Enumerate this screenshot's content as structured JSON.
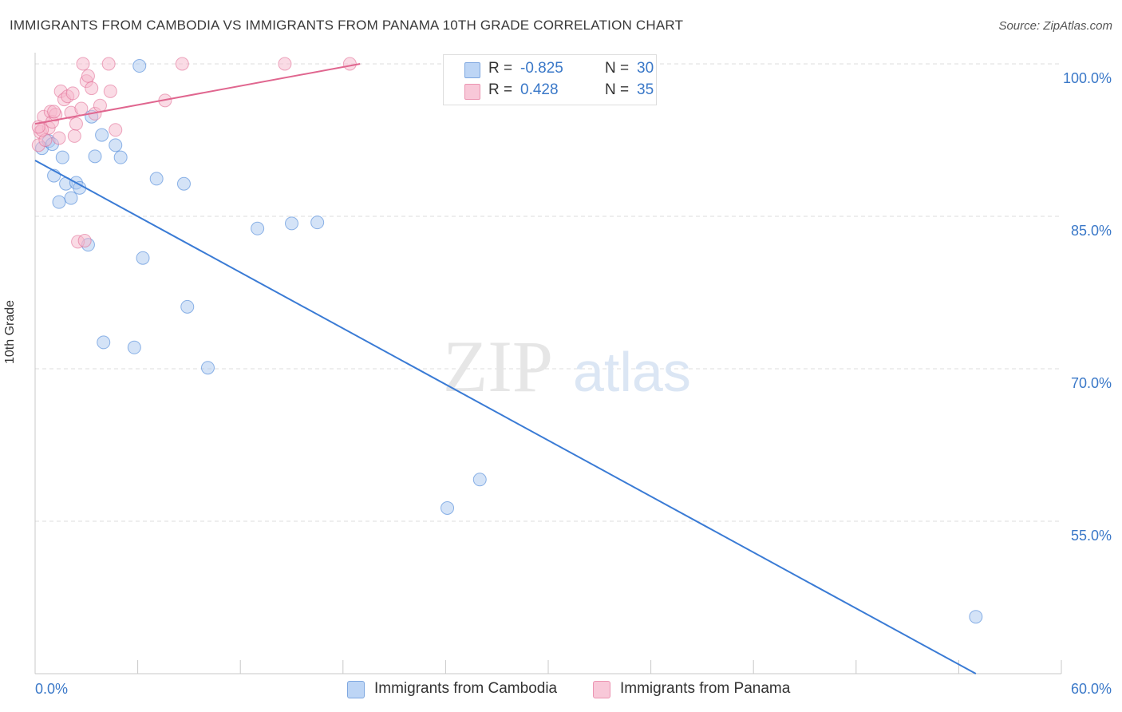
{
  "chart_data": {
    "type": "scatter",
    "title": "IMMIGRANTS FROM CAMBODIA VS IMMIGRANTS FROM PANAMA 10TH GRADE CORRELATION CHART",
    "source": "Source: ZipAtlas.com",
    "xlabel": "",
    "ylabel": "10th Grade",
    "xlim": [
      0,
      60
    ],
    "ylim": [
      40,
      100
    ],
    "x_tick_labels": [
      "0.0%",
      "60.0%"
    ],
    "y_ticks": [
      {
        "value": 100,
        "label": "100.0%"
      },
      {
        "value": 85,
        "label": "85.0%"
      },
      {
        "value": 70,
        "label": "70.0%"
      },
      {
        "value": 55,
        "label": "55.0%"
      }
    ],
    "watermark": {
      "left": "ZIP",
      "right": "atlas"
    },
    "legend": {
      "rows": [
        {
          "r_label": "R = ",
          "r_value": "-0.825",
          "n_label": "N = ",
          "n_value": "30"
        },
        {
          "r_label": "R = ",
          "r_value": "0.428",
          "n_label": "N = ",
          "n_value": "35"
        }
      ]
    },
    "series": [
      {
        "name": "Immigrants from Cambodia",
        "color": "#3a7bd5",
        "fill": "#a9c8f0",
        "trend": {
          "x": [
            0,
            55
          ],
          "y": [
            90.5,
            40
          ]
        },
        "points": [
          [
            0.4,
            91.7
          ],
          [
            0.8,
            92.4
          ],
          [
            1.0,
            92.1
          ],
          [
            1.1,
            89.0
          ],
          [
            1.4,
            86.4
          ],
          [
            1.6,
            90.8
          ],
          [
            1.8,
            88.2
          ],
          [
            2.1,
            86.8
          ],
          [
            2.4,
            88.3
          ],
          [
            2.6,
            87.8
          ],
          [
            3.1,
            82.2
          ],
          [
            3.3,
            94.8
          ],
          [
            3.5,
            90.9
          ],
          [
            3.9,
            93.0
          ],
          [
            4.0,
            72.6
          ],
          [
            4.7,
            92.0
          ],
          [
            5.0,
            90.8
          ],
          [
            5.8,
            72.1
          ],
          [
            6.1,
            99.8
          ],
          [
            6.3,
            80.9
          ],
          [
            7.1,
            88.7
          ],
          [
            8.7,
            88.2
          ],
          [
            8.9,
            76.1
          ],
          [
            10.1,
            70.1
          ],
          [
            13.0,
            83.8
          ],
          [
            15.0,
            84.3
          ],
          [
            16.5,
            84.4
          ],
          [
            24.1,
            56.3
          ],
          [
            26.0,
            59.1
          ],
          [
            55.0,
            45.6
          ]
        ]
      },
      {
        "name": "Immigrants from Panama",
        "color": "#e0668f",
        "fill": "#f5b7cb",
        "trend": {
          "x": [
            0,
            19
          ],
          "y": [
            94.1,
            100
          ]
        },
        "points": [
          [
            0.2,
            92.0
          ],
          [
            0.3,
            93.3
          ],
          [
            0.5,
            94.8
          ],
          [
            0.6,
            92.5
          ],
          [
            0.8,
            93.7
          ],
          [
            0.9,
            95.3
          ],
          [
            1.0,
            94.3
          ],
          [
            1.2,
            95.0
          ],
          [
            1.4,
            92.7
          ],
          [
            1.5,
            97.3
          ],
          [
            1.7,
            96.5
          ],
          [
            1.9,
            96.8
          ],
          [
            2.1,
            95.2
          ],
          [
            2.2,
            97.1
          ],
          [
            2.3,
            92.9
          ],
          [
            2.4,
            94.1
          ],
          [
            2.5,
            82.5
          ],
          [
            2.7,
            95.6
          ],
          [
            2.8,
            100.0
          ],
          [
            2.9,
            82.6
          ],
          [
            3.0,
            98.3
          ],
          [
            3.1,
            98.8
          ],
          [
            3.3,
            97.6
          ],
          [
            3.5,
            95.1
          ],
          [
            3.8,
            95.9
          ],
          [
            4.3,
            100.0
          ],
          [
            4.4,
            97.3
          ],
          [
            4.7,
            93.5
          ],
          [
            7.6,
            96.4
          ],
          [
            8.6,
            100.0
          ],
          [
            14.6,
            100.0
          ],
          [
            18.4,
            100.0
          ],
          [
            0.4,
            93.5
          ],
          [
            1.1,
            95.3
          ],
          [
            0.2,
            93.8
          ]
        ]
      }
    ]
  }
}
